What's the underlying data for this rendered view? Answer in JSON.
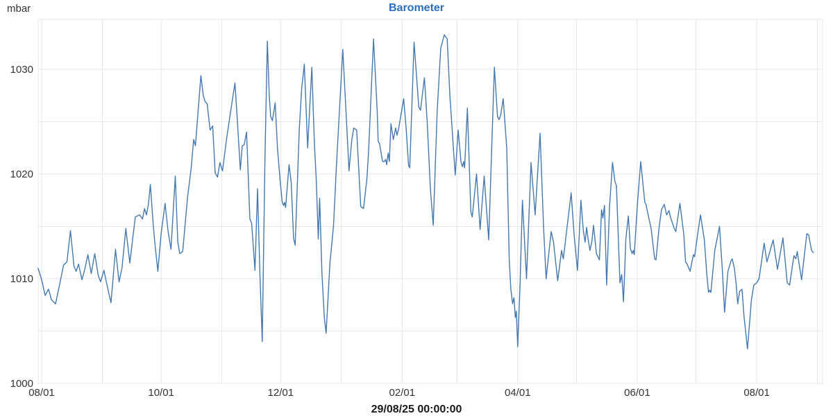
{
  "header": {
    "unit_label": "mbar",
    "title": "Barometer"
  },
  "caption": "29/08/25 00:00:00",
  "colors": {
    "background": "#ffffff",
    "title": "#2b6fb8",
    "line": "#4478af",
    "grid": "#e7e7e7",
    "axis_text": "#333333",
    "caption_text": "#1a1a1a"
  },
  "chart_data": {
    "type": "line",
    "title": "Barometer",
    "unit": "mbar",
    "grid": true,
    "legend": "none",
    "footer_timestamp": "29/08/25 00:00:00",
    "x_axis": {
      "description": "days since 01 Aug (year before timestamp); labels are month starts dd/mm style MM/01",
      "range_days": [
        -1.77,
        398.63
      ],
      "tick_days": [
        0,
        61,
        122,
        184,
        243,
        304,
        365
      ],
      "tick_labels": [
        "08/01",
        "10/01",
        "12/01",
        "02/01",
        "04/01",
        "06/01",
        "08/01"
      ],
      "gridline_days": [
        0,
        31,
        61,
        92,
        122,
        153,
        184,
        212,
        243,
        273,
        304,
        334,
        365,
        396
      ]
    },
    "y_axis": {
      "unit": "mbar",
      "range": [
        1000,
        1034.77
      ],
      "tick_values": [
        1000,
        1010,
        1020,
        1030
      ],
      "gridline_step": 5
    },
    "series": [
      {
        "name": "Barometer",
        "color": "#4478af",
        "points": [
          [
            -1.8,
            1011.0
          ],
          [
            0,
            1009.9
          ],
          [
            1.8,
            1008.4
          ],
          [
            3.5,
            1009.0
          ],
          [
            5,
            1008.0
          ],
          [
            7.1,
            1007.6
          ],
          [
            9,
            1009.3
          ],
          [
            11.2,
            1011.3
          ],
          [
            12.9,
            1011.6
          ],
          [
            14.7,
            1014.6
          ],
          [
            16.5,
            1011.2
          ],
          [
            17.6,
            1010.7
          ],
          [
            18.8,
            1011.4
          ],
          [
            20.6,
            1009.9
          ],
          [
            22,
            1010.9
          ],
          [
            23.6,
            1012.3
          ],
          [
            25.3,
            1010.5
          ],
          [
            27.1,
            1012.4
          ],
          [
            28.9,
            1010.3
          ],
          [
            30.1,
            1009.7
          ],
          [
            31.8,
            1010.8
          ],
          [
            33.6,
            1009.2
          ],
          [
            35.4,
            1007.7
          ],
          [
            37.7,
            1012.8
          ],
          [
            39.5,
            1009.7
          ],
          [
            41,
            1011.0
          ],
          [
            43,
            1014.8
          ],
          [
            45,
            1011.5
          ],
          [
            47.8,
            1015.9
          ],
          [
            50,
            1016.1
          ],
          [
            51.5,
            1015.7
          ],
          [
            52.5,
            1016.7
          ],
          [
            53.5,
            1016.1
          ],
          [
            54.5,
            1017.1
          ],
          [
            55.5,
            1019.0
          ],
          [
            57,
            1015.0
          ],
          [
            58,
            1013.0
          ],
          [
            59.3,
            1010.7
          ],
          [
            61,
            1014.3
          ],
          [
            63,
            1017.2
          ],
          [
            64.5,
            1014.6
          ],
          [
            66,
            1012.8
          ],
          [
            68.2,
            1019.8
          ],
          [
            69.5,
            1013.5
          ],
          [
            70.5,
            1012.4
          ],
          [
            72,
            1012.6
          ],
          [
            74.5,
            1017.8
          ],
          [
            76.3,
            1020.5
          ],
          [
            77.6,
            1023.3
          ],
          [
            78.5,
            1022.7
          ],
          [
            81.3,
            1029.4
          ],
          [
            82.5,
            1027.5
          ],
          [
            83.5,
            1026.9
          ],
          [
            84.5,
            1026.7
          ],
          [
            86,
            1024.2
          ],
          [
            87.3,
            1024.6
          ],
          [
            88.6,
            1020.1
          ],
          [
            89.8,
            1019.7
          ],
          [
            91,
            1021.1
          ],
          [
            92.3,
            1020.3
          ],
          [
            94.5,
            1023.5
          ],
          [
            96.5,
            1026.0
          ],
          [
            98.7,
            1028.7
          ],
          [
            100,
            1024.8
          ],
          [
            101.4,
            1020.4
          ],
          [
            102.4,
            1022.7
          ],
          [
            103.4,
            1022.8
          ],
          [
            104.6,
            1024.0
          ],
          [
            106.3,
            1015.7
          ],
          [
            107.2,
            1015.3
          ],
          [
            108.9,
            1010.8
          ],
          [
            110.2,
            1018.6
          ],
          [
            111.4,
            1010.5
          ],
          [
            112.6,
            1004.0
          ],
          [
            114,
            1021.5
          ],
          [
            115.2,
            1032.7
          ],
          [
            116.2,
            1027.5
          ],
          [
            116.9,
            1025.5
          ],
          [
            117.8,
            1025.1
          ],
          [
            119.2,
            1026.8
          ],
          [
            120.4,
            1022.4
          ],
          [
            121.8,
            1019.3
          ],
          [
            122.8,
            1017.3
          ],
          [
            123.5,
            1017.0
          ],
          [
            124,
            1017.3
          ],
          [
            124.5,
            1016.8
          ],
          [
            126.3,
            1020.9
          ],
          [
            127.4,
            1019.2
          ],
          [
            128.6,
            1013.9
          ],
          [
            129.4,
            1013.2
          ],
          [
            131.5,
            1024.2
          ],
          [
            132.7,
            1028.1
          ],
          [
            134.1,
            1030.5
          ],
          [
            135.8,
            1022.5
          ],
          [
            137.9,
            1030.2
          ],
          [
            139.2,
            1023.1
          ],
          [
            140.2,
            1019.3
          ],
          [
            141.2,
            1013.8
          ],
          [
            141.9,
            1017.7
          ],
          [
            143.1,
            1010.5
          ],
          [
            144.3,
            1006.3
          ],
          [
            145.2,
            1004.8
          ],
          [
            147.2,
            1011.6
          ],
          [
            147.8,
            1012.7
          ],
          [
            149,
            1015.1
          ],
          [
            150.4,
            1020.6
          ],
          [
            153.7,
            1031.9
          ],
          [
            155.5,
            1025.5
          ],
          [
            156.9,
            1020.3
          ],
          [
            158.3,
            1023.2
          ],
          [
            159.3,
            1024.4
          ],
          [
            160.8,
            1024.2
          ],
          [
            162.9,
            1016.9
          ],
          [
            164.3,
            1016.7
          ],
          [
            166,
            1019.5
          ],
          [
            166.9,
            1022.2
          ],
          [
            169.4,
            1032.9
          ],
          [
            171.3,
            1026.0
          ],
          [
            171.8,
            1023.1
          ],
          [
            172.5,
            1022.9
          ],
          [
            174,
            1021.2
          ],
          [
            174.9,
            1021.2
          ],
          [
            175.6,
            1021.4
          ],
          [
            176.1,
            1020.9
          ],
          [
            176.9,
            1022.0
          ],
          [
            177.5,
            1021.2
          ],
          [
            178.3,
            1024.8
          ],
          [
            179.5,
            1023.3
          ],
          [
            180.7,
            1024.4
          ],
          [
            181.4,
            1023.7
          ],
          [
            182.2,
            1024.3
          ],
          [
            184.8,
            1027.2
          ],
          [
            186,
            1024.5
          ],
          [
            187.3,
            1020.8
          ],
          [
            187.9,
            1020.6
          ],
          [
            190.1,
            1032.6
          ],
          [
            192.5,
            1026.4
          ],
          [
            193.4,
            1026.1
          ],
          [
            195.4,
            1029.2
          ],
          [
            196.8,
            1025.0
          ],
          [
            198.4,
            1018.7
          ],
          [
            199.9,
            1015.1
          ],
          [
            201.9,
            1026.0
          ],
          [
            203.7,
            1032.0
          ],
          [
            205.5,
            1033.3
          ],
          [
            207,
            1032.9
          ],
          [
            208.4,
            1027.5
          ],
          [
            210.2,
            1022.4
          ],
          [
            211.1,
            1019.9
          ],
          [
            212.6,
            1024.2
          ],
          [
            214.1,
            1021.1
          ],
          [
            214.8,
            1020.7
          ],
          [
            215.4,
            1021.2
          ],
          [
            215.9,
            1020.6
          ],
          [
            217.3,
            1026.3
          ],
          [
            219.1,
            1016.4
          ],
          [
            219.8,
            1015.9
          ],
          [
            222,
            1020.0
          ],
          [
            223.8,
            1014.7
          ],
          [
            225.9,
            1019.8
          ],
          [
            228.2,
            1013.7
          ],
          [
            231.1,
            1030.2
          ],
          [
            232.7,
            1025.5
          ],
          [
            233.5,
            1025.2
          ],
          [
            234.3,
            1025.6
          ],
          [
            235.6,
            1027.2
          ],
          [
            237.4,
            1022.5
          ],
          [
            238.7,
            1011.8
          ],
          [
            239.5,
            1009.0
          ],
          [
            240.4,
            1007.6
          ],
          [
            241.1,
            1008.2
          ],
          [
            241.8,
            1006.3
          ],
          [
            242.3,
            1006.9
          ],
          [
            243,
            1003.5
          ],
          [
            244.2,
            1009.5
          ],
          [
            245.4,
            1017.5
          ],
          [
            247.5,
            1010.0
          ],
          [
            249.8,
            1021.1
          ],
          [
            251.9,
            1016.1
          ],
          [
            254.4,
            1023.9
          ],
          [
            256.2,
            1015.0
          ],
          [
            257.5,
            1010.0
          ],
          [
            260.1,
            1014.5
          ],
          [
            261.3,
            1013.5
          ],
          [
            263.4,
            1009.8
          ],
          [
            265.4,
            1012.7
          ],
          [
            266.3,
            1011.9
          ],
          [
            270.3,
            1018.2
          ],
          [
            271.9,
            1014.0
          ],
          [
            273.5,
            1010.8
          ],
          [
            275.3,
            1017.5
          ],
          [
            276.5,
            1014.6
          ],
          [
            277.4,
            1013.5
          ],
          [
            278.2,
            1014.9
          ],
          [
            279,
            1013.7
          ],
          [
            279.9,
            1012.7
          ],
          [
            280.9,
            1013.6
          ],
          [
            281.7,
            1015.1
          ],
          [
            283.2,
            1012.4
          ],
          [
            284.7,
            1011.8
          ],
          [
            285.8,
            1016.6
          ],
          [
            286.5,
            1015.8
          ],
          [
            287.3,
            1017.0
          ],
          [
            288.4,
            1009.4
          ],
          [
            289.9,
            1016.9
          ],
          [
            291.4,
            1021.1
          ],
          [
            292.6,
            1019.3
          ],
          [
            293.4,
            1018.9
          ],
          [
            294.6,
            1012.7
          ],
          [
            295.2,
            1009.6
          ],
          [
            296.1,
            1010.4
          ],
          [
            297,
            1007.8
          ],
          [
            298.2,
            1013.8
          ],
          [
            299.5,
            1016.0
          ],
          [
            300.5,
            1012.9
          ],
          [
            301.4,
            1012.4
          ],
          [
            302,
            1012.7
          ],
          [
            302.5,
            1012.3
          ],
          [
            304.1,
            1017.1
          ],
          [
            305.8,
            1021.2
          ],
          [
            307.9,
            1017.3
          ],
          [
            308.5,
            1017.1
          ],
          [
            309.9,
            1015.8
          ],
          [
            311.1,
            1014.8
          ],
          [
            312.9,
            1011.9
          ],
          [
            313.6,
            1011.8
          ],
          [
            315.2,
            1014.9
          ],
          [
            316.4,
            1016.6
          ],
          [
            317.8,
            1017.1
          ],
          [
            319,
            1016.1
          ],
          [
            320.2,
            1016.5
          ],
          [
            321.1,
            1015.8
          ],
          [
            322.9,
            1014.8
          ],
          [
            323.7,
            1014.5
          ],
          [
            325.8,
            1017.2
          ],
          [
            327.8,
            1014.2
          ],
          [
            328.7,
            1011.6
          ],
          [
            329.5,
            1011.4
          ],
          [
            331,
            1010.7
          ],
          [
            332.7,
            1012.3
          ],
          [
            333.3,
            1012.1
          ],
          [
            334.8,
            1014.2
          ],
          [
            336.3,
            1016.1
          ],
          [
            338.3,
            1013.7
          ],
          [
            339.5,
            1010.5
          ],
          [
            340.4,
            1008.7
          ],
          [
            341,
            1008.9
          ],
          [
            341.6,
            1008.7
          ],
          [
            343.6,
            1012.7
          ],
          [
            346,
            1015.0
          ],
          [
            347.5,
            1010.7
          ],
          [
            348.6,
            1006.8
          ],
          [
            350.3,
            1010.7
          ],
          [
            351.9,
            1011.7
          ],
          [
            352.5,
            1011.9
          ],
          [
            353.6,
            1011.0
          ],
          [
            354.5,
            1009.5
          ],
          [
            355.3,
            1007.6
          ],
          [
            356.3,
            1008.8
          ],
          [
            357.5,
            1009.0
          ],
          [
            358.5,
            1006.5
          ],
          [
            360.3,
            1003.3
          ],
          [
            362.3,
            1008.0
          ],
          [
            363.5,
            1009.4
          ],
          [
            365,
            1009.6
          ],
          [
            366.2,
            1010.0
          ],
          [
            368.8,
            1013.4
          ],
          [
            370.2,
            1011.6
          ],
          [
            373.4,
            1013.7
          ],
          [
            375.6,
            1010.9
          ],
          [
            378.4,
            1013.9
          ],
          [
            380.6,
            1009.6
          ],
          [
            381.8,
            1009.4
          ],
          [
            384,
            1012.2
          ],
          [
            385,
            1011.9
          ],
          [
            385.7,
            1012.6
          ],
          [
            387.9,
            1009.9
          ],
          [
            390.6,
            1014.3
          ],
          [
            391.5,
            1014.2
          ],
          [
            393,
            1012.7
          ],
          [
            393.9,
            1012.5
          ]
        ]
      }
    ]
  }
}
